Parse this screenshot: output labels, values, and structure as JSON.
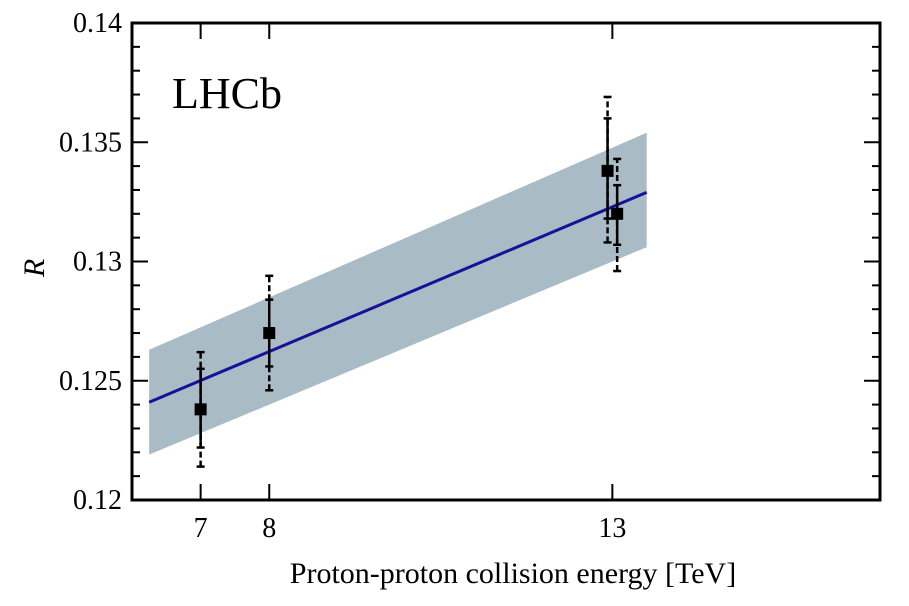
{
  "chart_data": {
    "type": "scatter",
    "title": "",
    "experiment_label": "LHCb",
    "xlabel": "Proton-proton collision energy [TeV]",
    "ylabel": "R",
    "xlim": [
      6.0,
      16.9
    ],
    "ylim": [
      0.12,
      0.14
    ],
    "xticks": [
      7,
      8,
      13
    ],
    "yticks": [
      0.12,
      0.125,
      0.13,
      0.135,
      0.14
    ],
    "ytick_labels": [
      "0.12",
      "0.125",
      "0.13",
      "0.135",
      "0.14"
    ],
    "grid": false,
    "colors": {
      "fit_line": "#1a0f99",
      "band": "#a9bcc6",
      "points": "#000000"
    },
    "fit": {
      "x": [
        6.25,
        13.5
      ],
      "y": [
        0.1241,
        0.1329
      ],
      "band_low": [
        0.1219,
        0.1306
      ],
      "band_high": [
        0.1263,
        0.1354
      ]
    },
    "points": [
      {
        "x": 7.0,
        "y": 0.1238,
        "stat_low": 0.1222,
        "stat_high": 0.1255,
        "tot_low": 0.1214,
        "tot_high": 0.1262
      },
      {
        "x": 8.0,
        "y": 0.127,
        "stat_low": 0.1256,
        "stat_high": 0.1284,
        "tot_low": 0.1246,
        "tot_high": 0.1294
      },
      {
        "x": 12.93,
        "y": 0.1338,
        "stat_low": 0.1318,
        "stat_high": 0.136,
        "tot_low": 0.1308,
        "tot_high": 0.1369
      },
      {
        "x": 13.07,
        "y": 0.132,
        "stat_low": 0.1307,
        "stat_high": 0.1332,
        "tot_low": 0.1296,
        "tot_high": 0.1343
      }
    ]
  }
}
